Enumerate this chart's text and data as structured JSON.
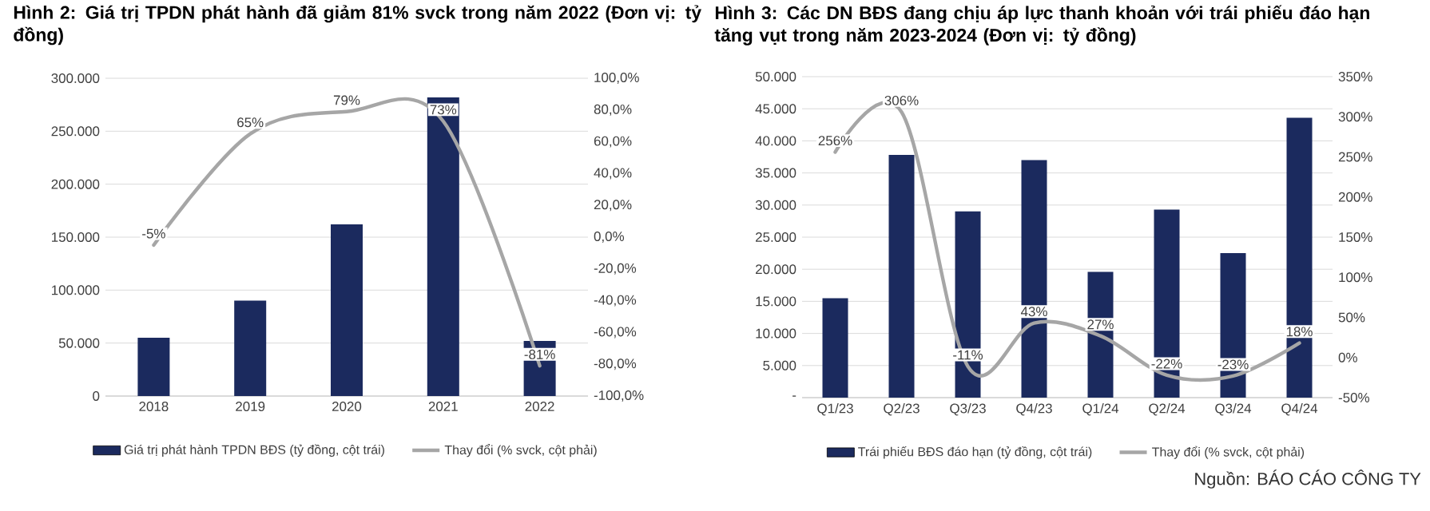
{
  "chart_data": [
    {
      "type": "bar",
      "title": "Hình 2: Giá trị TPDN phát hành đã giảm 81% svck trong năm 2022 (Đơn vị: tỷ đồng)",
      "categories": [
        "2018",
        "2019",
        "2020",
        "2021",
        "2022"
      ],
      "series": [
        {
          "name": "Giá trị phát hành TPDN BĐS (tỷ đồng, cột trái)",
          "color": "#1b2a5e",
          "values": [
            55000,
            90000,
            162000,
            282000,
            52000
          ]
        },
        {
          "name": "Thay đổi (% svck, cột phải)",
          "type": "line",
          "axis": "y2",
          "color": "#a6a6a6",
          "values": [
            -5,
            65,
            79,
            73,
            -81
          ],
          "value_labels": [
            "-5%",
            "65%",
            "79%",
            "73%",
            "-81%"
          ]
        }
      ],
      "ylim": [
        0,
        300000
      ],
      "yticks": [
        {
          "value": 0,
          "label": "0"
        },
        {
          "value": 50000,
          "label": "50.000"
        },
        {
          "value": 100000,
          "label": "100.000"
        },
        {
          "value": 150000,
          "label": "150.000"
        },
        {
          "value": 200000,
          "label": "200.000"
        },
        {
          "value": 250000,
          "label": "250.000"
        },
        {
          "value": 300000,
          "label": "300.000"
        }
      ],
      "y2lim": [
        -100,
        100
      ],
      "y2ticks": [
        {
          "value": -100,
          "label": "-100,0%"
        },
        {
          "value": -80,
          "label": "-80,0%"
        },
        {
          "value": -60,
          "label": "-60,0%"
        },
        {
          "value": -40,
          "label": "-40,0%"
        },
        {
          "value": -20,
          "label": "-20,0%"
        },
        {
          "value": 0,
          "label": "0,0%"
        },
        {
          "value": 20,
          "label": "20,0%"
        },
        {
          "value": 40,
          "label": "40,0%"
        },
        {
          "value": 60,
          "label": "60,0%"
        },
        {
          "value": 80,
          "label": "80,0%"
        },
        {
          "value": 100,
          "label": "100,0%"
        }
      ],
      "grid": "y",
      "legend": "bottom"
    },
    {
      "type": "bar",
      "title": "Hình 3: Các DN BĐS đang chịu áp lực thanh khoản với trái phiếu đáo hạn tăng vụt trong năm 2023-2024 (Đơn vị: tỷ đồng)",
      "categories": [
        "Q1/23",
        "Q2/23",
        "Q3/23",
        "Q4/23",
        "Q1/24",
        "Q2/24",
        "Q3/24",
        "Q4/24"
      ],
      "series": [
        {
          "name": "Trái phiếu BĐS đáo hạn (tỷ đồng, cột trái)",
          "color": "#1b2a5e",
          "values": [
            15500,
            37800,
            29000,
            37000,
            19600,
            29300,
            22500,
            43600
          ]
        },
        {
          "name": "Thay đổi (% svck, cột phải)",
          "type": "line",
          "axis": "y2",
          "color": "#a6a6a6",
          "values": [
            256,
            306,
            -11,
            43,
            27,
            -22,
            -23,
            18
          ],
          "value_labels": [
            "256%",
            "306%",
            "-11%",
            "43%",
            "27%",
            "-22%",
            "-23%",
            "18%"
          ]
        }
      ],
      "ylim": [
        0,
        50000
      ],
      "yticks": [
        {
          "value": 0,
          "label": "-"
        },
        {
          "value": 5000,
          "label": "5.000"
        },
        {
          "value": 10000,
          "label": "10.000"
        },
        {
          "value": 15000,
          "label": "15.000"
        },
        {
          "value": 20000,
          "label": "20.000"
        },
        {
          "value": 25000,
          "label": "25.000"
        },
        {
          "value": 30000,
          "label": "30.000"
        },
        {
          "value": 35000,
          "label": "35.000"
        },
        {
          "value": 40000,
          "label": "40.000"
        },
        {
          "value": 45000,
          "label": "45.000"
        },
        {
          "value": 50000,
          "label": "50.000"
        }
      ],
      "y2lim": [
        -50,
        350
      ],
      "y2ticks": [
        {
          "value": -50,
          "label": "-50%"
        },
        {
          "value": 0,
          "label": "0%"
        },
        {
          "value": 50,
          "label": "50%"
        },
        {
          "value": 100,
          "label": "100%"
        },
        {
          "value": 150,
          "label": "150%"
        },
        {
          "value": 200,
          "label": "200%"
        },
        {
          "value": 250,
          "label": "250%"
        },
        {
          "value": 300,
          "label": "300%"
        },
        {
          "value": 350,
          "label": "350%"
        }
      ],
      "grid": "y",
      "legend": "bottom",
      "annotations": [
        "Nguồn: BÁO CÁO CÔNG TY"
      ]
    }
  ]
}
